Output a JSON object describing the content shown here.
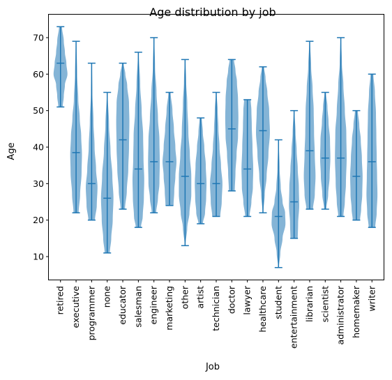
{
  "chart_data": {
    "type": "violin",
    "title": "Age distribution by job",
    "xlabel": "Job",
    "ylabel": "Age",
    "ylim": [
      3.7,
      76.3
    ],
    "yticks": [
      10,
      20,
      30,
      40,
      50,
      60,
      70
    ],
    "grid": false,
    "color": "#1f77b4",
    "categories": [
      "retired",
      "executive",
      "programmer",
      "none",
      "educator",
      "salesman",
      "engineer",
      "marketing",
      "other",
      "artist",
      "technician",
      "doctor",
      "lawyer",
      "healthcare",
      "student",
      "entertainment",
      "librarian",
      "scientist",
      "administrator",
      "homemaker",
      "writer"
    ],
    "series": [
      {
        "min": 51,
        "median": 63,
        "max": 73,
        "profile": [
          [
            51,
            0.3
          ],
          [
            54,
            0.45
          ],
          [
            57,
            0.6
          ],
          [
            60,
            0.95
          ],
          [
            63,
            0.8
          ],
          [
            66,
            0.6
          ],
          [
            69,
            0.45
          ],
          [
            73,
            0.2
          ]
        ]
      },
      {
        "min": 22,
        "median": 38.5,
        "max": 69,
        "profile": [
          [
            22,
            0.35
          ],
          [
            27,
            0.55
          ],
          [
            33,
            0.75
          ],
          [
            38,
            0.8
          ],
          [
            43,
            0.7
          ],
          [
            48,
            0.5
          ],
          [
            53,
            0.3
          ],
          [
            60,
            0.15
          ],
          [
            69,
            0.05
          ]
        ]
      },
      {
        "min": 20,
        "median": 30,
        "max": 63,
        "profile": [
          [
            20,
            0.45
          ],
          [
            24,
            0.7
          ],
          [
            29,
            0.8
          ],
          [
            34,
            0.6
          ],
          [
            40,
            0.4
          ],
          [
            47,
            0.25
          ],
          [
            55,
            0.1
          ],
          [
            63,
            0.05
          ]
        ]
      },
      {
        "min": 11,
        "median": 26,
        "max": 55,
        "profile": [
          [
            11,
            0.35
          ],
          [
            15,
            0.55
          ],
          [
            20,
            0.75
          ],
          [
            26,
            0.85
          ],
          [
            32,
            0.7
          ],
          [
            39,
            0.45
          ],
          [
            46,
            0.25
          ],
          [
            55,
            0.05
          ]
        ]
      },
      {
        "min": 23,
        "median": 42,
        "max": 63,
        "profile": [
          [
            23,
            0.3
          ],
          [
            28,
            0.55
          ],
          [
            34,
            0.75
          ],
          [
            40,
            0.85
          ],
          [
            47,
            0.9
          ],
          [
            52,
            0.85
          ],
          [
            57,
            0.6
          ],
          [
            60,
            0.35
          ],
          [
            63,
            0.1
          ]
        ]
      },
      {
        "min": 18,
        "median": 34,
        "max": 66,
        "profile": [
          [
            18,
            0.35
          ],
          [
            21,
            0.6
          ],
          [
            26,
            0.75
          ],
          [
            31,
            0.8
          ],
          [
            37,
            0.7
          ],
          [
            43,
            0.65
          ],
          [
            50,
            0.45
          ],
          [
            57,
            0.25
          ],
          [
            66,
            0.05
          ]
        ]
      },
      {
        "min": 22,
        "median": 36,
        "max": 70,
        "profile": [
          [
            22,
            0.3
          ],
          [
            26,
            0.55
          ],
          [
            30,
            0.75
          ],
          [
            36,
            0.8
          ],
          [
            42,
            0.75
          ],
          [
            48,
            0.55
          ],
          [
            55,
            0.35
          ],
          [
            62,
            0.15
          ],
          [
            70,
            0.05
          ]
        ]
      },
      {
        "min": 24,
        "median": 36,
        "max": 55,
        "profile": [
          [
            24,
            0.55
          ],
          [
            28,
            0.65
          ],
          [
            32,
            0.8
          ],
          [
            36,
            0.95
          ],
          [
            40,
            0.8
          ],
          [
            45,
            0.6
          ],
          [
            50,
            0.4
          ],
          [
            55,
            0.15
          ]
        ]
      },
      {
        "min": 13,
        "median": 32,
        "max": 64,
        "profile": [
          [
            13,
            0.05
          ],
          [
            18,
            0.3
          ],
          [
            22,
            0.6
          ],
          [
            27,
            0.85
          ],
          [
            32,
            0.85
          ],
          [
            38,
            0.65
          ],
          [
            44,
            0.45
          ],
          [
            52,
            0.3
          ],
          [
            58,
            0.15
          ],
          [
            64,
            0.05
          ]
        ]
      },
      {
        "min": 19,
        "median": 30,
        "max": 48,
        "profile": [
          [
            19,
            0.3
          ],
          [
            22,
            0.6
          ],
          [
            26,
            0.75
          ],
          [
            30,
            0.8
          ],
          [
            35,
            0.7
          ],
          [
            40,
            0.5
          ],
          [
            44,
            0.3
          ],
          [
            48,
            0.15
          ]
        ]
      },
      {
        "min": 21,
        "median": 30,
        "max": 55,
        "profile": [
          [
            21,
            0.55
          ],
          [
            25,
            0.75
          ],
          [
            30,
            0.85
          ],
          [
            35,
            0.65
          ],
          [
            40,
            0.45
          ],
          [
            45,
            0.3
          ],
          [
            50,
            0.2
          ],
          [
            55,
            0.05
          ]
        ]
      },
      {
        "min": 28,
        "median": 45,
        "max": 64,
        "profile": [
          [
            28,
            0.4
          ],
          [
            33,
            0.5
          ],
          [
            38,
            0.65
          ],
          [
            43,
            0.85
          ],
          [
            48,
            0.9
          ],
          [
            53,
            0.85
          ],
          [
            58,
            0.7
          ],
          [
            61,
            0.5
          ],
          [
            64,
            0.3
          ]
        ]
      },
      {
        "min": 21,
        "median": 34,
        "max": 53,
        "profile": [
          [
            21,
            0.3
          ],
          [
            25,
            0.55
          ],
          [
            29,
            0.75
          ],
          [
            34,
            0.8
          ],
          [
            40,
            0.7
          ],
          [
            46,
            0.6
          ],
          [
            50,
            0.55
          ],
          [
            53,
            0.45
          ]
        ]
      },
      {
        "min": 22,
        "median": 44.5,
        "max": 62,
        "profile": [
          [
            22,
            0.05
          ],
          [
            27,
            0.25
          ],
          [
            32,
            0.5
          ],
          [
            38,
            0.75
          ],
          [
            44,
            0.95
          ],
          [
            50,
            0.85
          ],
          [
            55,
            0.6
          ],
          [
            59,
            0.35
          ],
          [
            62,
            0.15
          ]
        ]
      },
      {
        "min": 7,
        "median": 21,
        "max": 42,
        "profile": [
          [
            7,
            0.05
          ],
          [
            11,
            0.25
          ],
          [
            15,
            0.55
          ],
          [
            19,
            0.95
          ],
          [
            22,
            0.9
          ],
          [
            25,
            0.55
          ],
          [
            29,
            0.3
          ],
          [
            34,
            0.15
          ],
          [
            42,
            0.03
          ]
        ]
      },
      {
        "min": 15,
        "median": 25,
        "max": 50,
        "profile": [
          [
            15,
            0.5
          ],
          [
            19,
            0.55
          ],
          [
            24,
            0.7
          ],
          [
            29,
            0.65
          ],
          [
            34,
            0.5
          ],
          [
            39,
            0.35
          ],
          [
            44,
            0.2
          ],
          [
            50,
            0.05
          ]
        ]
      },
      {
        "min": 23,
        "median": 39,
        "max": 69,
        "profile": [
          [
            23,
            0.45
          ],
          [
            27,
            0.7
          ],
          [
            32,
            0.8
          ],
          [
            38,
            0.7
          ],
          [
            44,
            0.6
          ],
          [
            50,
            0.55
          ],
          [
            56,
            0.4
          ],
          [
            62,
            0.2
          ],
          [
            69,
            0.05
          ]
        ]
      },
      {
        "min": 23,
        "median": 37,
        "max": 55,
        "profile": [
          [
            23,
            0.15
          ],
          [
            27,
            0.4
          ],
          [
            32,
            0.6
          ],
          [
            37,
            0.7
          ],
          [
            42,
            0.65
          ],
          [
            47,
            0.45
          ],
          [
            51,
            0.3
          ],
          [
            55,
            0.1
          ]
        ]
      },
      {
        "min": 21,
        "median": 37,
        "max": 70,
        "profile": [
          [
            21,
            0.35
          ],
          [
            25,
            0.55
          ],
          [
            30,
            0.7
          ],
          [
            37,
            0.8
          ],
          [
            44,
            0.75
          ],
          [
            50,
            0.55
          ],
          [
            57,
            0.35
          ],
          [
            63,
            0.15
          ],
          [
            70,
            0.05
          ]
        ]
      },
      {
        "min": 20,
        "median": 32,
        "max": 50,
        "profile": [
          [
            20,
            0.5
          ],
          [
            23,
            0.65
          ],
          [
            27,
            0.8
          ],
          [
            32,
            0.85
          ],
          [
            37,
            0.75
          ],
          [
            42,
            0.6
          ],
          [
            46,
            0.4
          ],
          [
            50,
            0.2
          ]
        ]
      },
      {
        "min": 18,
        "median": 36,
        "max": 60,
        "profile": [
          [
            18,
            0.45
          ],
          [
            22,
            0.65
          ],
          [
            27,
            0.75
          ],
          [
            32,
            0.7
          ],
          [
            37,
            0.65
          ],
          [
            43,
            0.6
          ],
          [
            49,
            0.55
          ],
          [
            55,
            0.4
          ],
          [
            60,
            0.2
          ]
        ]
      }
    ]
  }
}
